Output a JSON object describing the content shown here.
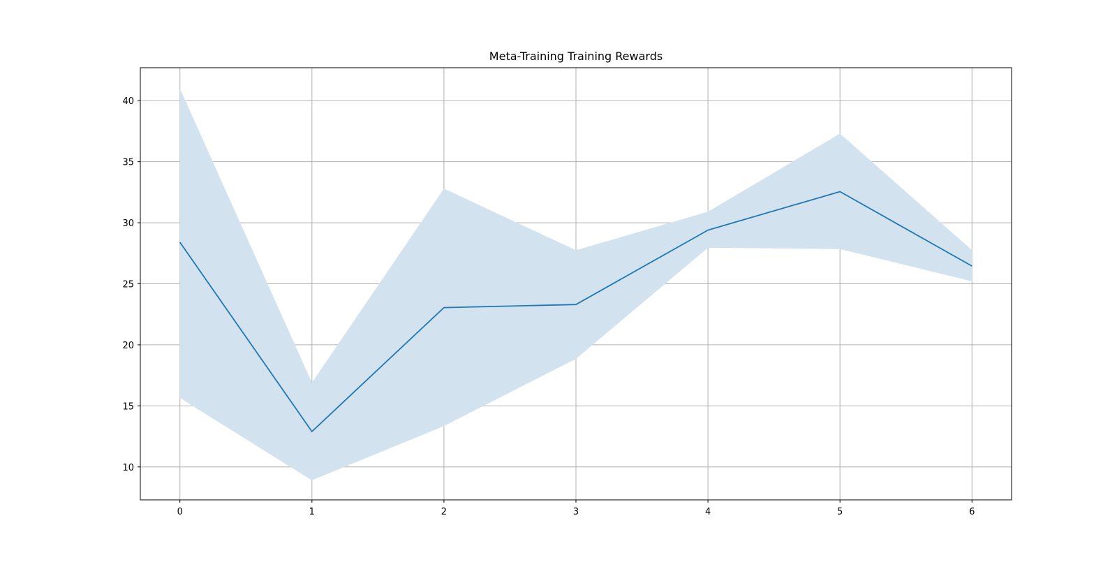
{
  "chart_data": {
    "type": "line",
    "title": "Meta-Training Training Rewards",
    "xlabel": "",
    "ylabel": "",
    "x": [
      0,
      1,
      2,
      3,
      4,
      5,
      6
    ],
    "xlim": [
      -0.3,
      6.3
    ],
    "ylim": [
      7.3,
      42.7
    ],
    "xticks": [
      0,
      1,
      2,
      3,
      4,
      5,
      6
    ],
    "yticks": [
      10,
      15,
      20,
      25,
      30,
      35,
      40
    ],
    "grid": true,
    "series": [
      {
        "values": [
          28.4,
          12.9,
          23.05,
          23.3,
          29.4,
          32.55,
          26.45
        ],
        "band_upper": [
          41.0,
          16.9,
          32.8,
          27.75,
          30.9,
          37.3,
          27.75
        ],
        "band_lower": [
          15.65,
          8.9,
          13.35,
          18.85,
          27.95,
          27.85,
          25.2
        ],
        "color": "#1f77b4",
        "band_color": "#d2e3ef"
      }
    ]
  }
}
